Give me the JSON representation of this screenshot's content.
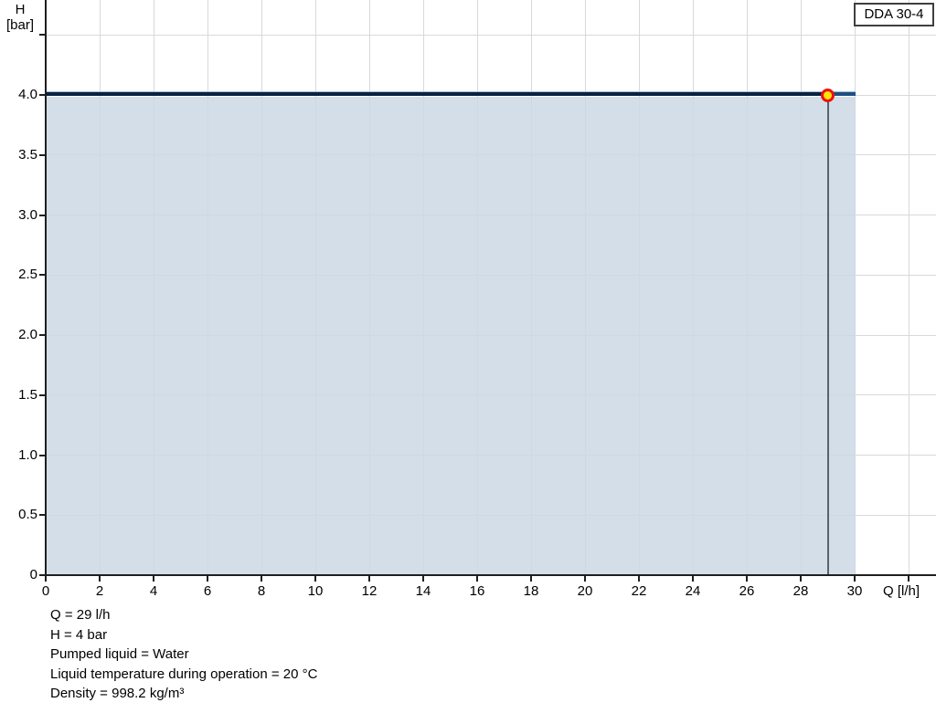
{
  "legend": {
    "label": "DDA 30-4"
  },
  "axis_titles": {
    "y_line1": "H",
    "y_line2": "[bar]",
    "x": "Q [l/h]"
  },
  "axes": {
    "y_ticks": [
      {
        "v": 0.0,
        "label": "0"
      },
      {
        "v": 0.5,
        "label": "0.5"
      },
      {
        "v": 1.0,
        "label": "1.0"
      },
      {
        "v": 1.5,
        "label": "1.5"
      },
      {
        "v": 2.0,
        "label": "2.0"
      },
      {
        "v": 2.5,
        "label": "2.5"
      },
      {
        "v": 3.0,
        "label": "3.0"
      },
      {
        "v": 3.5,
        "label": "3.5"
      },
      {
        "v": 4.0,
        "label": "4.0"
      },
      {
        "v": 4.5,
        "label": ""
      }
    ],
    "x_ticks": [
      {
        "v": 0,
        "label": "0"
      },
      {
        "v": 2,
        "label": "2"
      },
      {
        "v": 4,
        "label": "4"
      },
      {
        "v": 6,
        "label": "6"
      },
      {
        "v": 8,
        "label": "8"
      },
      {
        "v": 10,
        "label": "10"
      },
      {
        "v": 12,
        "label": "12"
      },
      {
        "v": 14,
        "label": "14"
      },
      {
        "v": 16,
        "label": "16"
      },
      {
        "v": 18,
        "label": "18"
      },
      {
        "v": 20,
        "label": "20"
      },
      {
        "v": 22,
        "label": "22"
      },
      {
        "v": 24,
        "label": "24"
      },
      {
        "v": 26,
        "label": "26"
      },
      {
        "v": 28,
        "label": "28"
      },
      {
        "v": 30,
        "label": "30"
      },
      {
        "v": 32,
        "label": ""
      }
    ]
  },
  "chart_data": {
    "type": "area",
    "title": "DDA 30-4 pump performance curve",
    "xlabel": "Q [l/h]",
    "ylabel": "H [bar]",
    "xlim": [
      0,
      33
    ],
    "ylim": [
      0,
      4.79
    ],
    "grid": true,
    "legend_entries": [
      "DDA 30-4"
    ],
    "legend_position": "top-right",
    "series": [
      {
        "name": "DDA 30-4",
        "x": [
          0,
          30
        ],
        "y": [
          4.0,
          4.0
        ]
      }
    ],
    "area_fill": {
      "x_start": 0,
      "x_end": 30,
      "y_top": 4.0,
      "y_bottom": 0
    },
    "duty_point": {
      "q": 29,
      "h": 4.0
    }
  },
  "info_lines": [
    "Q = 29 l/h",
    "H = 4 bar",
    "Pumped liquid = Water",
    "Liquid temperature during operation = 20 °C",
    "Density = 998.2 kg/m³"
  ],
  "colors": {
    "curve_main": "#0a2140",
    "curve_edge": "#9db9d8",
    "curve_tail": "#1d4f80",
    "area_fill": "rgba(203,216,229,0.85)",
    "grid": "#d9d9d9",
    "axis": "#1f1f1f",
    "duty_line": "#59636d",
    "marker_fill": "#ffe208",
    "marker_ring": "#ee1111",
    "legend_border": "#3f3f3f",
    "text": "#000000"
  }
}
